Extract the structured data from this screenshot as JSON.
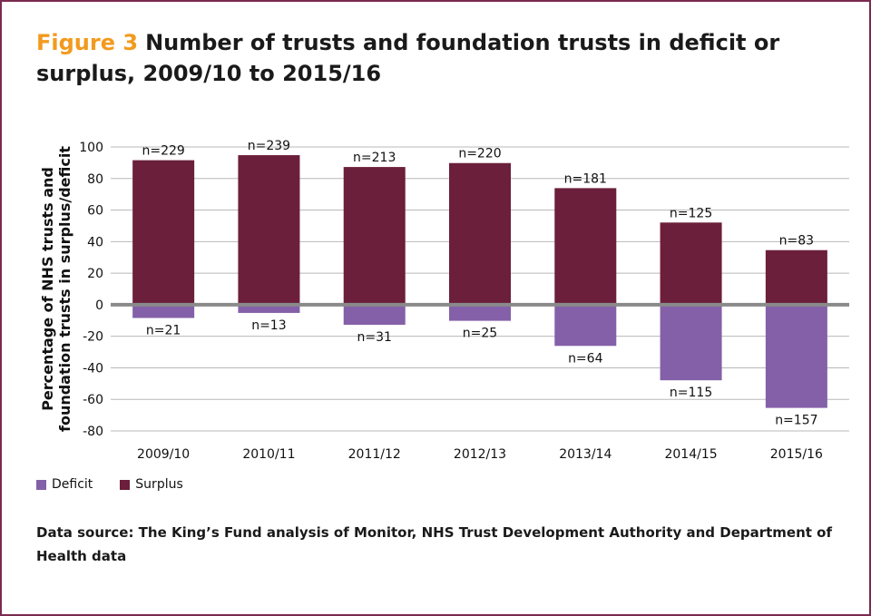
{
  "figure": {
    "label": "Figure 3",
    "title": "Number of trusts and foundation trusts in deficit or surplus, 2009/10 to 2015/16",
    "source": "Data source: The King’s Fund analysis of Monitor, NHS Trust Development Authority and Department of Health data"
  },
  "chart_data": {
    "type": "bar",
    "stacked": "diverging",
    "categories": [
      "2009/10",
      "2010/11",
      "2011/12",
      "2012/13",
      "2013/14",
      "2014/15",
      "2015/16"
    ],
    "series": [
      {
        "name": "Surplus",
        "color": "#6b1f3a",
        "values": [
          91.6,
          94.8,
          87.3,
          89.8,
          73.9,
          52.1,
          34.6
        ],
        "labels": [
          "n=229",
          "n=239",
          "n=213",
          "n=220",
          "n=181",
          "n=125",
          "n=83"
        ]
      },
      {
        "name": "Deficit",
        "color": "#8460a8",
        "values": [
          -8.4,
          -5.2,
          -12.7,
          -10.2,
          -26.1,
          -47.9,
          -65.4
        ],
        "labels": [
          "n=21",
          "n=13",
          "n=31",
          "n=25",
          "n=64",
          "n=115",
          "n=157"
        ]
      }
    ],
    "ylabel": "Percentage of NHS trusts and foundation trusts in surplus/deficit",
    "xlabel": "",
    "ylim": [
      -80,
      100
    ],
    "yticks": [
      100,
      80,
      60,
      40,
      20,
      0,
      -20,
      -40,
      -60,
      -80
    ],
    "grid": true,
    "legend": "bottom-left",
    "legend_order": [
      "Deficit",
      "Surplus"
    ],
    "zero_line_color": "#8a8a8a",
    "grid_color": "#b8b8b8"
  }
}
